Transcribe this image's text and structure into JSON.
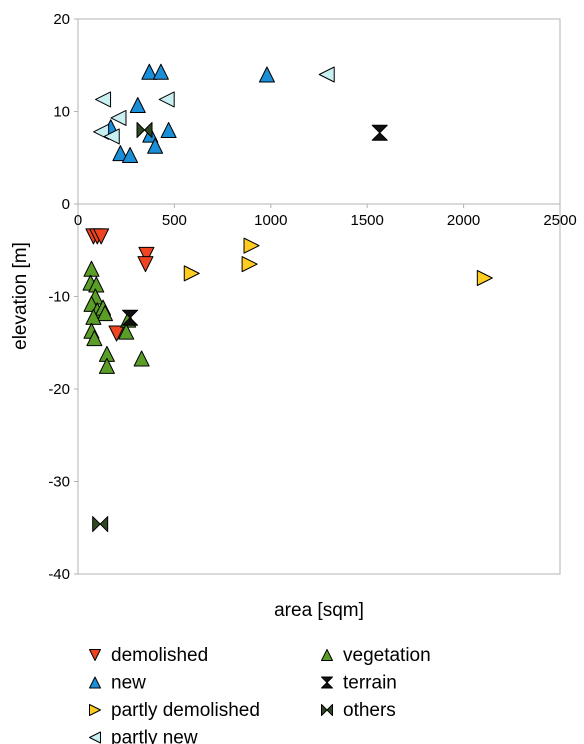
{
  "chart_data": {
    "type": "scatter",
    "title": "",
    "xlabel": "area [sqm]",
    "ylabel": "elevation [m]",
    "xlim": [
      0,
      2500
    ],
    "ylim": [
      -40,
      20
    ],
    "x_ticks": [
      "0",
      "500",
      "1000",
      "1500",
      "2000",
      "2500"
    ],
    "y_ticks": [
      "20",
      "10",
      "0",
      "-10",
      "-20",
      "-30",
      "-40"
    ],
    "x_axis_crosses_at": 0,
    "grid": false,
    "legend_position": "bottom",
    "series": [
      {
        "name": "demolished",
        "marker": "triangle-down",
        "color": "#ee4422",
        "points": [
          [
            80,
            -3.5
          ],
          [
            100,
            -3.5
          ],
          [
            120,
            -3.5
          ],
          [
            200,
            -14
          ],
          [
            355,
            -5.5
          ],
          [
            350,
            -6.5
          ]
        ]
      },
      {
        "name": "new",
        "marker": "triangle-up",
        "color": "#1a8ed6",
        "points": [
          [
            370,
            14.3
          ],
          [
            430,
            14.3
          ],
          [
            980,
            14
          ],
          [
            310,
            10.7
          ],
          [
            375,
            7.5
          ],
          [
            170,
            8.3
          ],
          [
            470,
            8
          ],
          [
            400,
            6.3
          ],
          [
            220,
            5.5
          ],
          [
            270,
            5.3
          ]
        ]
      },
      {
        "name": "partly demolished",
        "marker": "triangle-right",
        "color": "#ffcc22",
        "points": [
          [
            900,
            -4.5
          ],
          [
            890,
            -6.5
          ],
          [
            590,
            -7.5
          ],
          [
            2110,
            -8
          ]
        ]
      },
      {
        "name": "partly new",
        "marker": "triangle-left",
        "color": "#c8f0f2",
        "points": [
          [
            130,
            11.3
          ],
          [
            460,
            11.3
          ],
          [
            1290,
            14
          ],
          [
            210,
            9.3
          ],
          [
            120,
            7.8
          ],
          [
            175,
            7.3
          ]
        ]
      },
      {
        "name": "vegetation",
        "marker": "triangle-up",
        "color": "#5a9e28",
        "points": [
          [
            70,
            -7
          ],
          [
            65,
            -8.5
          ],
          [
            95,
            -8.7
          ],
          [
            90,
            -10
          ],
          [
            70,
            -10.8
          ],
          [
            100,
            -11.5
          ],
          [
            130,
            -11.2
          ],
          [
            140,
            -11.8
          ],
          [
            80,
            -12.2
          ],
          [
            70,
            -13.7
          ],
          [
            85,
            -14.5
          ],
          [
            150,
            -16.2
          ],
          [
            150,
            -17.5
          ],
          [
            260,
            -12.5
          ],
          [
            250,
            -13.8
          ],
          [
            330,
            -16.7
          ]
        ]
      },
      {
        "name": "terrain",
        "marker": "hourglass",
        "color": "#111111",
        "points": [
          [
            1565,
            7.7
          ],
          [
            270,
            -12.3
          ]
        ]
      },
      {
        "name": "others",
        "marker": "bowtie",
        "color": "#2e4820",
        "points": [
          [
            345,
            8
          ],
          [
            115,
            -34.6
          ]
        ]
      }
    ]
  }
}
